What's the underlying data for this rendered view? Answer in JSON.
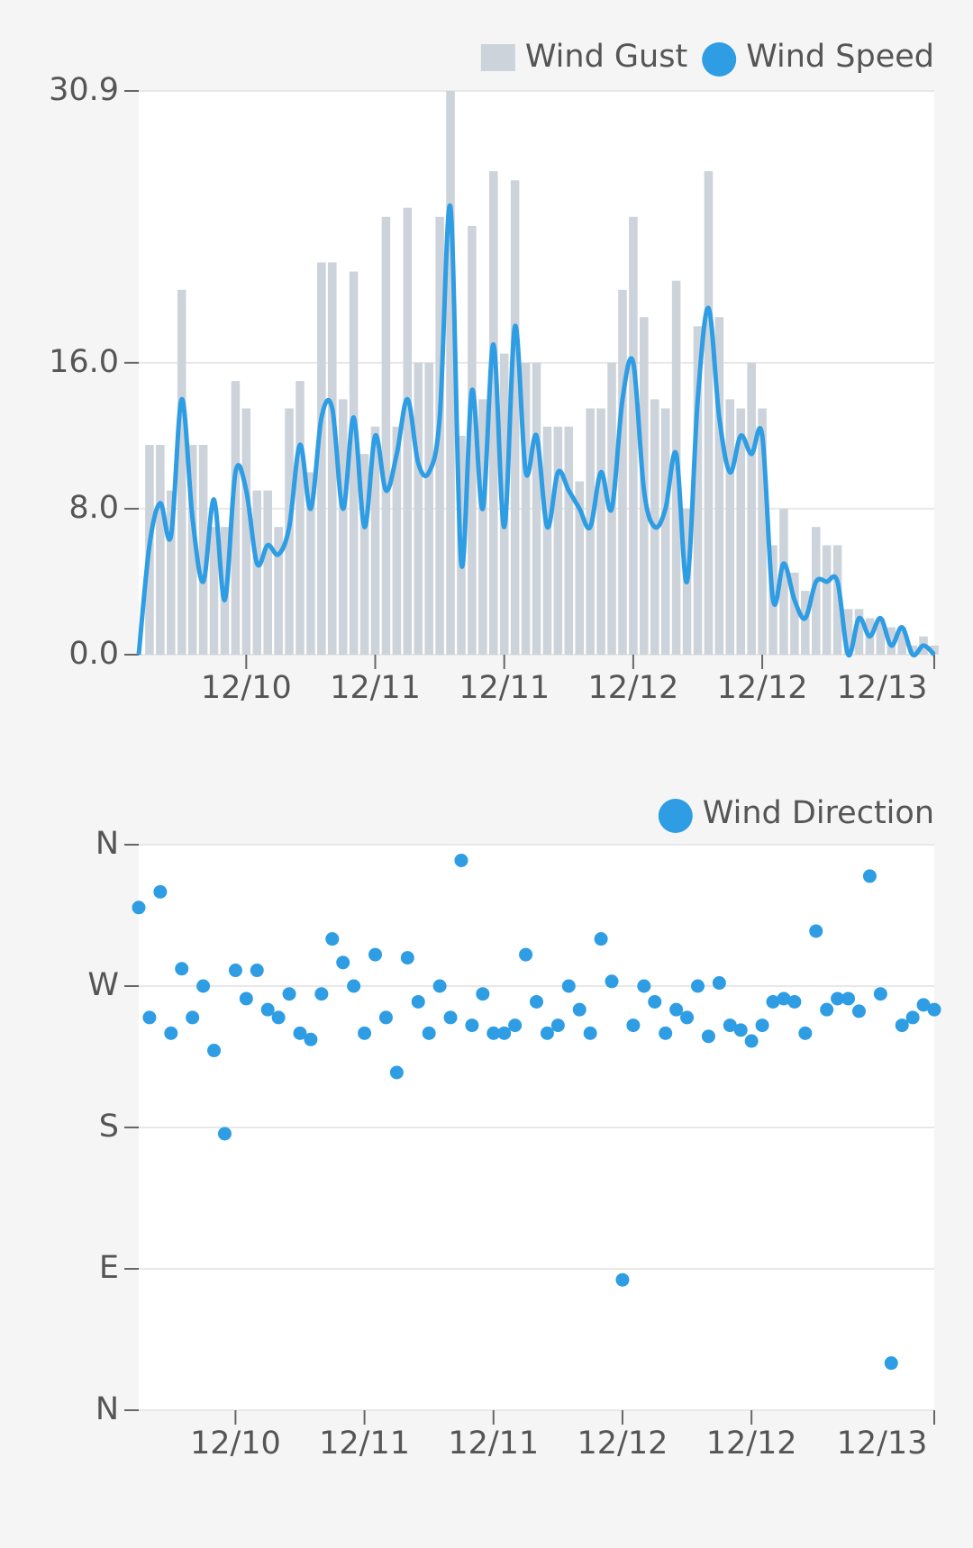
{
  "chart_data": [
    {
      "type": "bar-line",
      "legend_position": "top-right",
      "grid": true,
      "x": [
        0,
        1,
        2,
        3,
        4,
        5,
        6,
        7,
        8,
        9,
        10,
        11,
        12,
        13,
        14,
        15,
        16,
        17,
        18,
        19,
        20,
        21,
        22,
        23,
        24,
        25,
        26,
        27,
        28,
        29,
        30,
        31,
        32,
        33,
        34,
        35,
        36,
        37,
        38,
        39,
        40,
        41,
        42,
        43,
        44,
        45,
        46,
        47,
        48,
        49,
        50,
        51,
        52,
        53,
        54,
        55,
        56,
        57,
        58,
        59,
        60,
        61,
        62,
        63,
        64,
        65,
        66,
        67,
        68,
        69,
        70,
        71,
        72,
        73,
        74
      ],
      "xlim": [
        0,
        74
      ],
      "xticks": [
        {
          "value": 10,
          "label": "12/10"
        },
        {
          "value": 22,
          "label": "12/11"
        },
        {
          "value": 34,
          "label": "12/11"
        },
        {
          "value": 46,
          "label": "12/12"
        },
        {
          "value": 58,
          "label": "12/12"
        },
        {
          "value": 74,
          "label": "12/13"
        }
      ],
      "ylim": [
        0,
        30.9
      ],
      "yticks": [
        {
          "value": 0,
          "label": "0.0"
        },
        {
          "value": 8,
          "label": "8.0"
        },
        {
          "value": 16,
          "label": "16.0"
        },
        {
          "value": 30.9,
          "label": "30.9"
        }
      ],
      "series": [
        {
          "name": "Wind Gust",
          "kind": "bar",
          "color": "#cdd3da",
          "values": [
            0,
            11.5,
            11.5,
            9,
            20,
            11.5,
            11.5,
            7,
            7,
            15,
            13.5,
            9,
            9,
            7,
            13.5,
            15,
            10,
            21.5,
            21.5,
            14,
            21,
            11,
            12.5,
            24,
            12.5,
            24.5,
            16,
            16,
            24,
            30.9,
            12,
            23.5,
            14,
            26.5,
            16.5,
            26,
            16,
            16,
            12.5,
            12.5,
            12.5,
            9.5,
            13.5,
            13.5,
            16,
            20,
            24,
            18.5,
            14,
            13.5,
            20.5,
            8,
            18,
            26.5,
            18.5,
            14,
            13.5,
            16,
            13.5,
            6,
            8,
            4.5,
            3.5,
            7,
            6,
            6,
            2.5,
            2.5,
            2,
            2,
            1.5,
            1.5,
            0.5,
            1,
            0.5
          ]
        },
        {
          "name": "Wind Speed",
          "kind": "line",
          "color": "#2e9de3",
          "values": [
            0,
            6,
            8.3,
            6.5,
            14,
            7.5,
            4,
            8.5,
            3,
            10,
            9,
            5,
            6,
            5.5,
            7,
            11.5,
            8,
            13,
            13.5,
            8,
            13,
            7,
            12,
            9,
            11,
            14,
            10.5,
            10,
            13,
            24.5,
            5,
            14.5,
            8,
            17,
            7,
            18,
            10,
            12,
            7,
            10,
            9,
            8,
            7,
            10,
            8,
            14,
            16,
            9,
            7,
            8,
            11,
            4,
            14,
            19,
            13,
            10,
            12,
            11,
            12,
            3,
            5,
            3,
            2,
            4,
            4,
            4,
            0,
            2,
            1,
            2,
            0.5,
            1.5,
            0,
            0.5,
            0
          ]
        }
      ]
    },
    {
      "type": "scatter",
      "legend_position": "top-right",
      "grid": true,
      "xlim": [
        0,
        74
      ],
      "xticks": [
        {
          "value": 9,
          "label": "12/10"
        },
        {
          "value": 21,
          "label": "12/11"
        },
        {
          "value": 33,
          "label": "12/11"
        },
        {
          "value": 45,
          "label": "12/12"
        },
        {
          "value": 57,
          "label": "12/12"
        },
        {
          "value": 74,
          "label": "12/13"
        }
      ],
      "ylim": [
        0,
        360
      ],
      "yticks": [
        {
          "value": 0,
          "label": "N"
        },
        {
          "value": 90,
          "label": "E"
        },
        {
          "value": 180,
          "label": "S"
        },
        {
          "value": 270,
          "label": "W"
        },
        {
          "value": 360,
          "label": "N"
        }
      ],
      "series": [
        {
          "name": "Wind Direction",
          "color": "#2e9de3",
          "x": [
            0,
            1,
            2,
            3,
            4,
            5,
            6,
            7,
            8,
            9,
            10,
            11,
            12,
            13,
            14,
            15,
            16,
            17,
            18,
            19,
            20,
            21,
            22,
            23,
            24,
            25,
            26,
            27,
            28,
            29,
            30,
            31,
            32,
            33,
            34,
            35,
            36,
            37,
            38,
            39,
            40,
            41,
            42,
            43,
            44,
            45,
            46,
            47,
            48,
            49,
            50,
            51,
            52,
            53,
            54,
            55,
            56,
            57,
            58,
            59,
            60,
            61,
            62,
            63,
            64,
            65,
            66,
            67,
            68,
            69,
            70,
            71,
            72,
            73,
            74
          ],
          "values": [
            320,
            250,
            330,
            240,
            281,
            250,
            270,
            229,
            176,
            280,
            262,
            280,
            255,
            250,
            265,
            240,
            236,
            265,
            300,
            285,
            270,
            240,
            290,
            250,
            215,
            288,
            260,
            240,
            270,
            250,
            350,
            245,
            265,
            240,
            240,
            245,
            290,
            260,
            240,
            245,
            270,
            255,
            240,
            300,
            273,
            83,
            245,
            270,
            260,
            240,
            255,
            250,
            270,
            238,
            272,
            245,
            242,
            235,
            245,
            260,
            262,
            260,
            240,
            305,
            255,
            262,
            262,
            254,
            340,
            265,
            30,
            245,
            250,
            258,
            255
          ]
        }
      ]
    }
  ]
}
